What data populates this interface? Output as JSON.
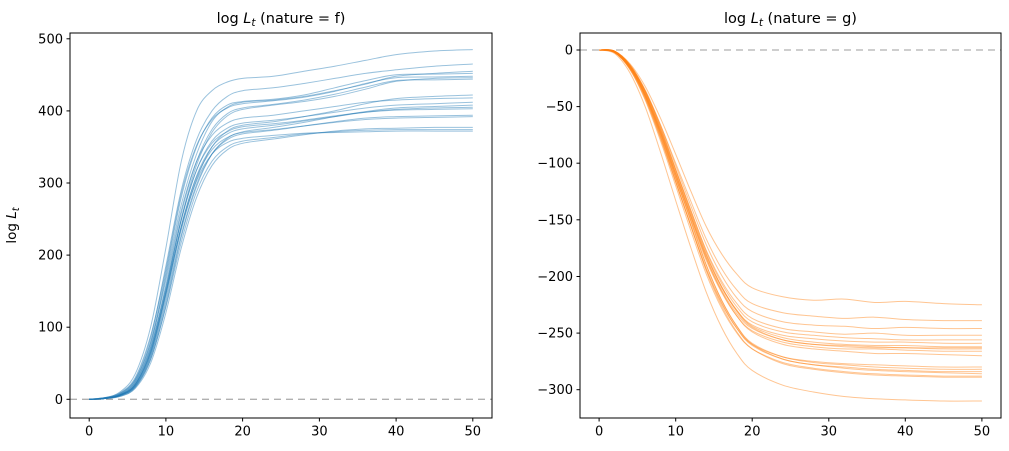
{
  "figure": {
    "background": "#ffffff"
  },
  "chart_data": [
    {
      "id": "nature-f",
      "type": "line",
      "title": "log L_t (nature = f)",
      "ylabel": "log L_t",
      "xlabel": "",
      "legend": "none",
      "grid": false,
      "xlim": [
        -2.5,
        52.5
      ],
      "ylim": [
        -26,
        508
      ],
      "xticks": [
        0,
        10,
        20,
        30,
        40,
        50
      ],
      "yticks": [
        0,
        100,
        200,
        300,
        400,
        500
      ],
      "zero_line": {
        "y": 0,
        "color": "#b0b0b0",
        "dash": "7 5"
      },
      "line_color": "#1f77b4",
      "line_alpha": 0.45,
      "x": [
        0,
        2,
        4,
        6,
        8,
        10,
        12,
        14,
        16,
        18,
        20,
        24,
        28,
        32,
        36,
        40,
        45,
        50
      ],
      "series": [
        [
          0,
          2,
          10,
          35,
          100,
          210,
          330,
          400,
          428,
          440,
          445,
          448,
          455,
          462,
          470,
          478,
          483,
          485
        ],
        [
          0,
          1,
          8,
          28,
          85,
          185,
          290,
          360,
          400,
          420,
          428,
          432,
          438,
          445,
          452,
          457,
          462,
          465
        ],
        [
          0,
          1,
          6,
          24,
          75,
          170,
          270,
          340,
          385,
          405,
          412,
          415,
          420,
          428,
          437,
          448,
          452,
          455
        ],
        [
          0,
          1,
          7,
          26,
          80,
          175,
          280,
          350,
          390,
          408,
          413,
          416,
          422,
          432,
          442,
          450,
          451,
          452
        ],
        [
          0,
          2,
          9,
          30,
          88,
          180,
          285,
          352,
          388,
          404,
          410,
          414,
          419,
          427,
          438,
          446,
          447,
          448
        ],
        [
          0,
          1,
          5,
          20,
          65,
          150,
          250,
          325,
          370,
          393,
          402,
          408,
          413,
          420,
          430,
          441,
          445,
          446
        ],
        [
          0,
          1,
          6,
          22,
          70,
          158,
          258,
          330,
          374,
          396,
          404,
          409,
          415,
          423,
          433,
          442,
          443,
          444
        ],
        [
          0,
          1,
          5,
          18,
          60,
          140,
          235,
          305,
          350,
          372,
          380,
          385,
          392,
          400,
          410,
          417,
          420,
          422
        ],
        [
          0,
          2,
          8,
          27,
          78,
          165,
          262,
          330,
          366,
          383,
          390,
          394,
          400,
          406,
          412,
          415,
          417,
          418
        ],
        [
          0,
          1,
          6,
          21,
          68,
          152,
          248,
          318,
          358,
          376,
          383,
          387,
          392,
          398,
          404,
          408,
          410,
          412
        ],
        [
          0,
          1,
          4,
          16,
          55,
          130,
          225,
          295,
          340,
          362,
          371,
          377,
          384,
          392,
          399,
          404,
          406,
          408
        ],
        [
          0,
          1,
          5,
          19,
          62,
          145,
          240,
          310,
          350,
          368,
          375,
          380,
          386,
          392,
          398,
          402,
          404,
          405
        ],
        [
          0,
          2,
          7,
          24,
          72,
          155,
          250,
          318,
          355,
          371,
          378,
          382,
          387,
          393,
          398,
          401,
          402,
          403
        ],
        [
          0,
          1,
          5,
          18,
          58,
          135,
          228,
          298,
          340,
          360,
          368,
          373,
          379,
          385,
          390,
          392,
          393,
          394
        ],
        [
          0,
          1,
          6,
          20,
          64,
          146,
          240,
          308,
          346,
          363,
          370,
          374,
          379,
          384,
          388,
          390,
          391,
          392
        ],
        [
          0,
          1,
          4,
          15,
          50,
          120,
          210,
          280,
          324,
          346,
          355,
          361,
          367,
          372,
          375,
          376,
          377,
          377
        ],
        [
          0,
          1,
          5,
          17,
          55,
          128,
          218,
          288,
          330,
          350,
          358,
          363,
          368,
          371,
          373,
          374,
          374,
          374
        ],
        [
          0,
          2,
          6,
          21,
          66,
          148,
          238,
          303,
          340,
          356,
          362,
          366,
          369,
          370,
          371,
          372,
          372,
          372
        ]
      ]
    },
    {
      "id": "nature-g",
      "type": "line",
      "title": "log L_t (nature = g)",
      "ylabel": "",
      "xlabel": "",
      "legend": "none",
      "grid": false,
      "xlim": [
        -2.5,
        52.5
      ],
      "ylim": [
        -325,
        15
      ],
      "xticks": [
        0,
        10,
        20,
        30,
        40,
        50
      ],
      "yticks": [
        0,
        -50,
        -100,
        -150,
        -200,
        -250,
        -300
      ],
      "zero_line": {
        "y": 0,
        "color": "#b0b0b0",
        "dash": "7 5"
      },
      "line_color": "#ff7f0e",
      "line_alpha": 0.45,
      "x": [
        0,
        2,
        4,
        6,
        8,
        10,
        12,
        14,
        16,
        18,
        20,
        24,
        28,
        32,
        36,
        40,
        45,
        50
      ],
      "series": [
        [
          0,
          -1,
          -12,
          -32,
          -60,
          -92,
          -125,
          -156,
          -180,
          -198,
          -210,
          -218,
          -221,
          -220,
          -223,
          -222,
          -224,
          -225
        ],
        [
          0,
          -2,
          -14,
          -36,
          -66,
          -100,
          -134,
          -167,
          -193,
          -212,
          -224,
          -232,
          -235,
          -237,
          -236,
          -238,
          -239,
          -239
        ],
        [
          0,
          -1,
          -13,
          -35,
          -66,
          -102,
          -138,
          -172,
          -199,
          -219,
          -231,
          -240,
          -243,
          -244,
          -246,
          -245,
          -246,
          -246
        ],
        [
          0,
          -2,
          -15,
          -38,
          -70,
          -106,
          -142,
          -177,
          -204,
          -224,
          -237,
          -246,
          -249,
          -251,
          -250,
          -252,
          -252,
          -252
        ],
        [
          0,
          -1,
          -13,
          -36,
          -68,
          -105,
          -142,
          -178,
          -206,
          -227,
          -240,
          -249,
          -252,
          -254,
          -255,
          -256,
          -256,
          -256
        ],
        [
          0,
          -2,
          -16,
          -40,
          -73,
          -110,
          -147,
          -182,
          -210,
          -230,
          -243,
          -252,
          -255,
          -257,
          -258,
          -258,
          -259,
          -259
        ],
        [
          0,
          -1,
          -14,
          -37,
          -70,
          -108,
          -145,
          -181,
          -209,
          -230,
          -244,
          -254,
          -258,
          -260,
          -261,
          -261,
          -262,
          -262
        ],
        [
          0,
          -2,
          -15,
          -39,
          -72,
          -110,
          -148,
          -184,
          -212,
          -233,
          -246,
          -256,
          -260,
          -261,
          -262,
          -263,
          -263,
          -263
        ],
        [
          0,
          -1,
          -13,
          -36,
          -68,
          -106,
          -144,
          -180,
          -209,
          -231,
          -245,
          -256,
          -260,
          -262,
          -263,
          -263,
          -264,
          -264
        ],
        [
          0,
          -2,
          -16,
          -41,
          -75,
          -113,
          -150,
          -186,
          -214,
          -235,
          -248,
          -258,
          -262,
          -264,
          -264,
          -265,
          -266,
          -266
        ],
        [
          0,
          -1,
          -14,
          -38,
          -71,
          -109,
          -147,
          -184,
          -213,
          -235,
          -249,
          -260,
          -264,
          -266,
          -268,
          -268,
          -269,
          -270
        ],
        [
          0,
          -2,
          -17,
          -43,
          -78,
          -117,
          -156,
          -194,
          -224,
          -246,
          -260,
          -271,
          -275,
          -277,
          -278,
          -279,
          -280,
          -280
        ],
        [
          0,
          -1,
          -15,
          -40,
          -74,
          -113,
          -152,
          -190,
          -221,
          -244,
          -259,
          -271,
          -276,
          -278,
          -280,
          -281,
          -282,
          -282
        ],
        [
          0,
          -2,
          -16,
          -42,
          -77,
          -116,
          -155,
          -193,
          -223,
          -246,
          -261,
          -273,
          -278,
          -280,
          -282,
          -283,
          -284,
          -284
        ],
        [
          0,
          -1,
          -14,
          -39,
          -73,
          -112,
          -151,
          -190,
          -221,
          -244,
          -260,
          -273,
          -278,
          -281,
          -283,
          -284,
          -285,
          -286
        ],
        [
          0,
          -2,
          -17,
          -44,
          -80,
          -120,
          -160,
          -198,
          -228,
          -250,
          -264,
          -276,
          -281,
          -284,
          -286,
          -287,
          -288,
          -288
        ],
        [
          0,
          -1,
          -15,
          -41,
          -76,
          -116,
          -156,
          -195,
          -226,
          -249,
          -264,
          -277,
          -282,
          -285,
          -287,
          -288,
          -289,
          -289
        ],
        [
          0,
          -3,
          -20,
          -50,
          -90,
          -133,
          -175,
          -214,
          -245,
          -268,
          -283,
          -296,
          -302,
          -306,
          -308,
          -309,
          -310,
          -310
        ]
      ]
    }
  ]
}
